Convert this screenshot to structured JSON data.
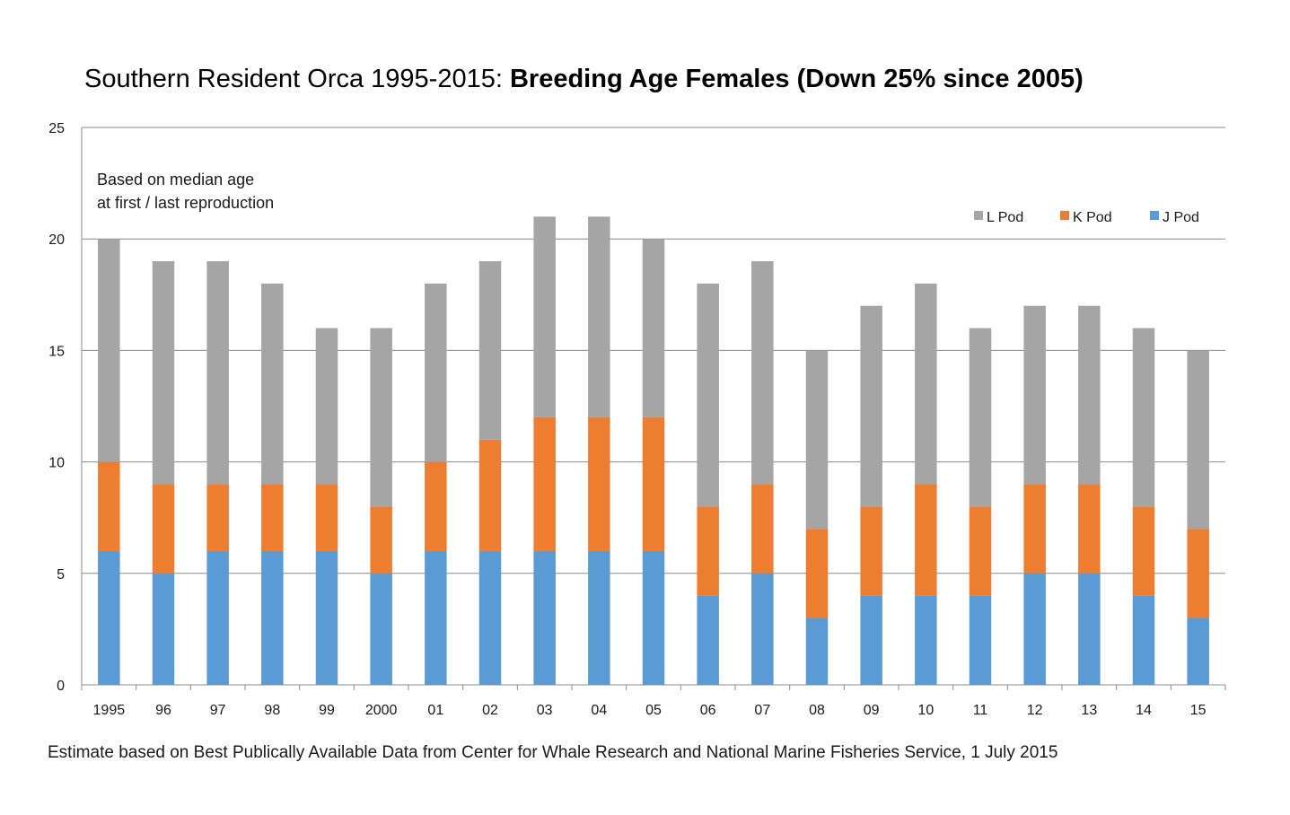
{
  "chart_data": {
    "type": "bar",
    "stacked": true,
    "title": "Southern Resident Orca 1995-2015: ",
    "title_bold": "Breeding Age Females (Down 25% since 2005)",
    "annotation": [
      "Based on median age",
      "at first / last reproduction"
    ],
    "footer": "Estimate based on Best Publically Available Data from Center for Whale Research and National Marine Fisheries Service, 1 July 2015",
    "xlabel": "",
    "ylabel": "",
    "ylim": [
      0,
      25
    ],
    "yticks": [
      0,
      5,
      10,
      15,
      20,
      25
    ],
    "grid": true,
    "legend_placement": "top-right",
    "categories": [
      "1995",
      "96",
      "97",
      "98",
      "99",
      "2000",
      "01",
      "02",
      "03",
      "04",
      "05",
      "06",
      "07",
      "08",
      "09",
      "10",
      "11",
      "12",
      "13",
      "14",
      "15"
    ],
    "series": [
      {
        "name": "J Pod",
        "color": "#5b9bd5",
        "values": [
          6,
          5,
          6,
          6,
          6,
          5,
          6,
          6,
          6,
          6,
          6,
          4,
          5,
          3,
          4,
          4,
          4,
          5,
          5,
          4,
          3
        ]
      },
      {
        "name": "K Pod",
        "color": "#ed7d31",
        "values": [
          4,
          4,
          3,
          3,
          3,
          3,
          4,
          5,
          6,
          6,
          6,
          4,
          4,
          4,
          4,
          5,
          4,
          4,
          4,
          4,
          4
        ]
      },
      {
        "name": "L Pod",
        "color": "#a5a5a5",
        "values": [
          10,
          10,
          10,
          9,
          7,
          8,
          8,
          8,
          9,
          9,
          8,
          10,
          10,
          8,
          9,
          9,
          8,
          8,
          8,
          8,
          8
        ]
      }
    ],
    "legend_order": [
      "L Pod",
      "K Pod",
      "J Pod"
    ]
  }
}
